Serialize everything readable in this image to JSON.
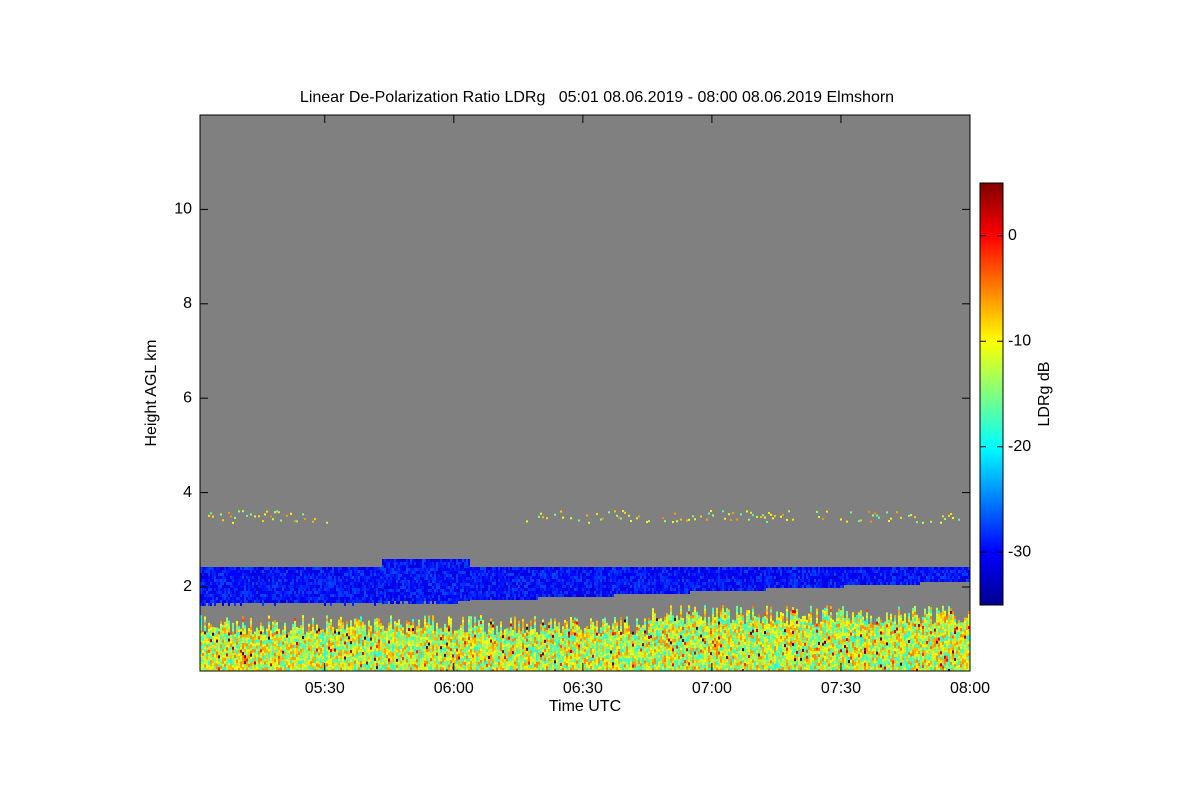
{
  "chart_data": {
    "type": "heatmap",
    "title": "Linear De-Polarization Ratio LDRg   05:01 08.06.2019 - 08:00 08.06.2019 Elmshorn",
    "x_label": "Time UTC",
    "y_label": "Height AGL km",
    "colorbar_label": "LDRg dB",
    "xlim": [
      301,
      480
    ],
    "xticks": [
      {
        "value": 330,
        "label": "05:30"
      },
      {
        "value": 360,
        "label": "06:00"
      },
      {
        "value": 390,
        "label": "06:30"
      },
      {
        "value": 420,
        "label": "07:00"
      },
      {
        "value": 450,
        "label": "07:30"
      },
      {
        "value": 480,
        "label": "08:00"
      }
    ],
    "ylim": [
      0.22,
      12
    ],
    "yticks": [
      2,
      4,
      6,
      8,
      10
    ],
    "clim": [
      -35,
      5
    ],
    "cticks": [
      -30,
      -20,
      -10,
      0
    ],
    "colormap": "jet"
  }
}
